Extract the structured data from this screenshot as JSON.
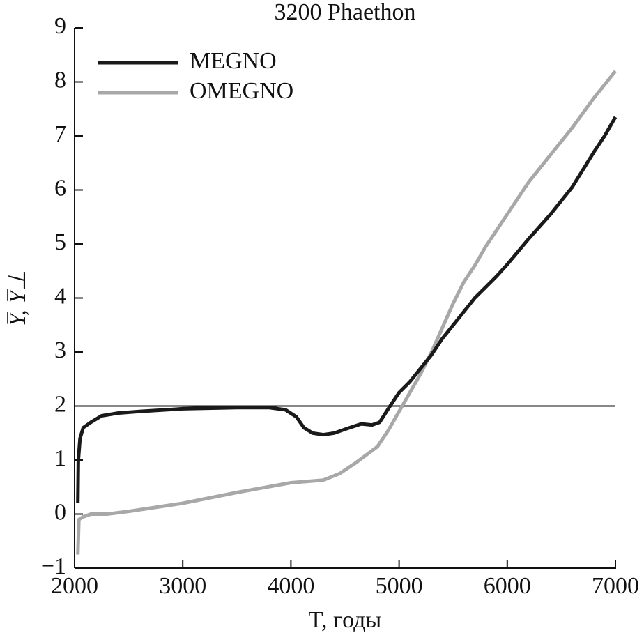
{
  "chart_data": {
    "type": "line",
    "title": "3200 Phaethon",
    "xlabel": "T, годы",
    "ylabel": "Y̅, Y̅⊥",
    "xlim": [
      2000,
      7000
    ],
    "xticks": [
      2000,
      3000,
      4000,
      5000,
      6000,
      7000
    ],
    "ylim": [
      -1,
      9
    ],
    "yticks": [
      {
        "value": -1,
        "label": "−1"
      },
      0,
      1,
      2,
      3,
      4,
      5,
      6,
      7,
      8,
      9
    ],
    "reference_line": 2,
    "legend": "upper left",
    "series": [
      {
        "name": "MEGNO",
        "color": "#1a1a1a",
        "x": [
          2030,
          2035,
          2050,
          2080,
          2150,
          2250,
          2400,
          2600,
          3000,
          3500,
          3800,
          3950,
          4050,
          4120,
          4200,
          4300,
          4400,
          4500,
          4650,
          4750,
          4820,
          4900,
          5000,
          5100,
          5200,
          5300,
          5400,
          5500,
          5600,
          5700,
          5800,
          5900,
          6000,
          6200,
          6400,
          6600,
          6800,
          6900,
          7000
        ],
        "values": [
          0.2,
          1.0,
          1.4,
          1.6,
          1.7,
          1.82,
          1.87,
          1.9,
          1.95,
          1.97,
          1.97,
          1.93,
          1.8,
          1.6,
          1.5,
          1.47,
          1.5,
          1.57,
          1.67,
          1.65,
          1.7,
          1.95,
          2.25,
          2.45,
          2.7,
          2.95,
          3.25,
          3.5,
          3.75,
          4.0,
          4.2,
          4.4,
          4.62,
          5.1,
          5.55,
          6.05,
          6.7,
          7.0,
          7.35
        ]
      },
      {
        "name": "OMEGNO",
        "color": "#a8a8a8",
        "x": [
          2030,
          2040,
          2080,
          2150,
          2300,
          2500,
          3000,
          3500,
          4000,
          4300,
          4450,
          4600,
          4800,
          4900,
          5000,
          5100,
          5200,
          5300,
          5400,
          5500,
          5600,
          5700,
          5800,
          6000,
          6200,
          6400,
          6600,
          6800,
          7000
        ],
        "values": [
          -0.75,
          -0.1,
          -0.05,
          0,
          0,
          0.05,
          0.2,
          0.4,
          0.58,
          0.63,
          0.75,
          0.95,
          1.25,
          1.55,
          1.9,
          2.25,
          2.6,
          3.0,
          3.45,
          3.9,
          4.3,
          4.6,
          4.95,
          5.55,
          6.15,
          6.65,
          7.15,
          7.7,
          8.2
        ]
      }
    ]
  }
}
